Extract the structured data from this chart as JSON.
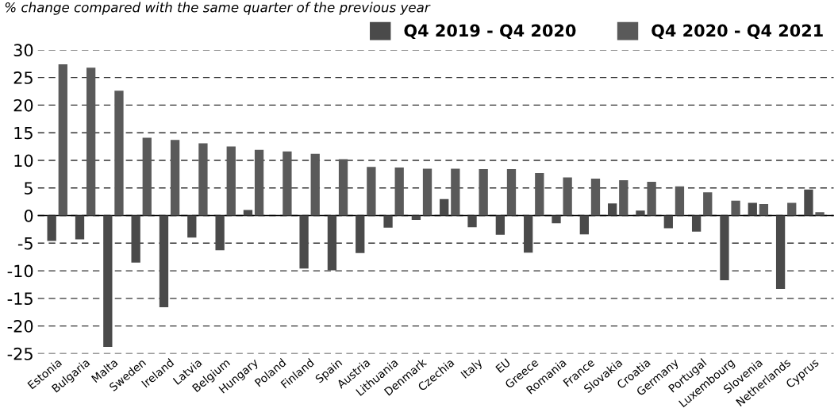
{
  "chart_data": {
    "type": "bar",
    "subtitle": "% change compared with the same quarter of the previous year",
    "categories": [
      "Estonia",
      "Bulgaria",
      "Malta",
      "Sweden",
      "Ireland",
      "Latvia",
      "Belgium",
      "Hungary",
      "Poland",
      "Finland",
      "Spain",
      "Austria",
      "Lithuania",
      "Denmark",
      "Czechia",
      "Italy",
      "EU",
      "Greece",
      "Romania",
      "France",
      "Slovakia",
      "Croatia",
      "Germany",
      "Portugal",
      "Luxembourg",
      "Slovenia",
      "Netherlands",
      "Cyprus"
    ],
    "series": [
      {
        "name": "Q4 2019 - Q4 2020",
        "color": "#4a4a4a",
        "values": [
          -4.6,
          -4.3,
          -23.8,
          -8.5,
          -16.6,
          -4.0,
          -6.3,
          1.0,
          0,
          -9.6,
          -9.9,
          -6.8,
          -2.2,
          -0.8,
          3.0,
          -2.1,
          -3.5,
          -6.7,
          -1.4,
          -3.4,
          2.2,
          0.9,
          -2.3,
          -2.9,
          -11.7,
          2.3,
          -13.3,
          4.7
        ]
      },
      {
        "name": "Q4 2020 - Q4 2021",
        "color": "#5a5a5a",
        "values": [
          27.4,
          26.8,
          22.6,
          14.1,
          13.7,
          13.1,
          12.5,
          11.9,
          11.6,
          11.2,
          10.2,
          8.8,
          8.7,
          8.5,
          8.5,
          8.4,
          8.4,
          7.7,
          6.9,
          6.7,
          6.4,
          6.1,
          5.3,
          4.2,
          2.7,
          2.1,
          2.3,
          0.6
        ]
      }
    ],
    "ylim": [
      -25,
      30
    ],
    "yticks": [
      -25,
      -20,
      -15,
      -10,
      -5,
      0,
      5,
      10,
      15,
      20,
      25,
      30
    ],
    "grid": "y",
    "legend": "top right",
    "tick_labels": "xy"
  }
}
